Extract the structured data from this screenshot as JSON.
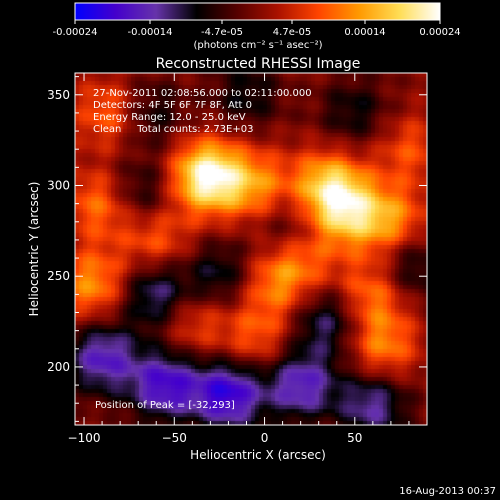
{
  "colorbar": {
    "ticks": [
      "-0.00024",
      "-0.00014",
      "-4.7e-05",
      "4.7e-05",
      "0.00014",
      "0.00024"
    ],
    "unit_label": "(photons cm⁻² s⁻¹ asec⁻²)",
    "colors": [
      "#0000ff",
      "#4400cc",
      "#6633aa",
      "#000000",
      "#550000",
      "#aa1100",
      "#ff4400",
      "#ff9900",
      "#ffdd55",
      "#ffffff"
    ]
  },
  "chart_data": {
    "type": "heatmap",
    "title": "Reconstructed RHESSI Image",
    "xlabel": "Heliocentric X (arcsec)",
    "ylabel": "Heliocentric Y (arcsec)",
    "xlim": [
      -105,
      90
    ],
    "ylim": [
      168,
      362
    ],
    "x_ticks": [
      -100,
      -50,
      0,
      50
    ],
    "y_ticks": [
      200,
      250,
      300,
      350
    ],
    "annotations": [
      "27-Nov-2011 02:08:56.000 to 02:11:00.000",
      "Detectors: 4F 5F 6F 7F 8F, Att 0",
      "Energy Range: 12.0 - 25.0 keV",
      "Clean     Total counts: 2.73E+03"
    ],
    "peak_label": "Position of Peak = [-32,293]",
    "peak": [
      -32,
      293
    ],
    "blobs": [
      {
        "x": -32,
        "y": 305,
        "w": 0.00024
      },
      {
        "x": 35,
        "y": 300,
        "w": 0.00016
      },
      {
        "x": 45,
        "y": 285,
        "w": 0.00015
      },
      {
        "x": -5,
        "y": 300,
        "w": 0.00012
      },
      {
        "x": 70,
        "y": 280,
        "w": 0.00013
      },
      {
        "x": -85,
        "y": 340,
        "w": 0.00011
      },
      {
        "x": -90,
        "y": 290,
        "w": 0.00012
      },
      {
        "x": -95,
        "y": 245,
        "w": 0.00013
      },
      {
        "x": -60,
        "y": 270,
        "w": 0.0001
      },
      {
        "x": 5,
        "y": 245,
        "w": 0.0001
      },
      {
        "x": 60,
        "y": 240,
        "w": 0.00012
      },
      {
        "x": -40,
        "y": 225,
        "w": 9e-05
      },
      {
        "x": 65,
        "y": 210,
        "w": 0.00012
      },
      {
        "x": -5,
        "y": 215,
        "w": 9e-05
      },
      {
        "x": 20,
        "y": 260,
        "w": 0.00011
      },
      {
        "x": 80,
        "y": 320,
        "w": 8e-05
      },
      {
        "x": -65,
        "y": 340,
        "w": -9e-05
      },
      {
        "x": -10,
        "y": 350,
        "w": -8e-05
      },
      {
        "x": -70,
        "y": 295,
        "w": -0.0001
      },
      {
        "x": 15,
        "y": 275,
        "w": -9e-05
      },
      {
        "x": -60,
        "y": 240,
        "w": -0.00014
      },
      {
        "x": -90,
        "y": 205,
        "w": -0.00016
      },
      {
        "x": -55,
        "y": 190,
        "w": -0.00018
      },
      {
        "x": -20,
        "y": 185,
        "w": -0.0002
      },
      {
        "x": 20,
        "y": 190,
        "w": -0.00016
      },
      {
        "x": 60,
        "y": 180,
        "w": -0.00014
      },
      {
        "x": 35,
        "y": 225,
        "w": -0.00012
      },
      {
        "x": -25,
        "y": 250,
        "w": -0.0001
      },
      {
        "x": 80,
        "y": 255,
        "w": -0.0001
      },
      {
        "x": 50,
        "y": 340,
        "w": -8e-05
      }
    ]
  },
  "footer_timestamp": "16-Aug-2013 00:37"
}
